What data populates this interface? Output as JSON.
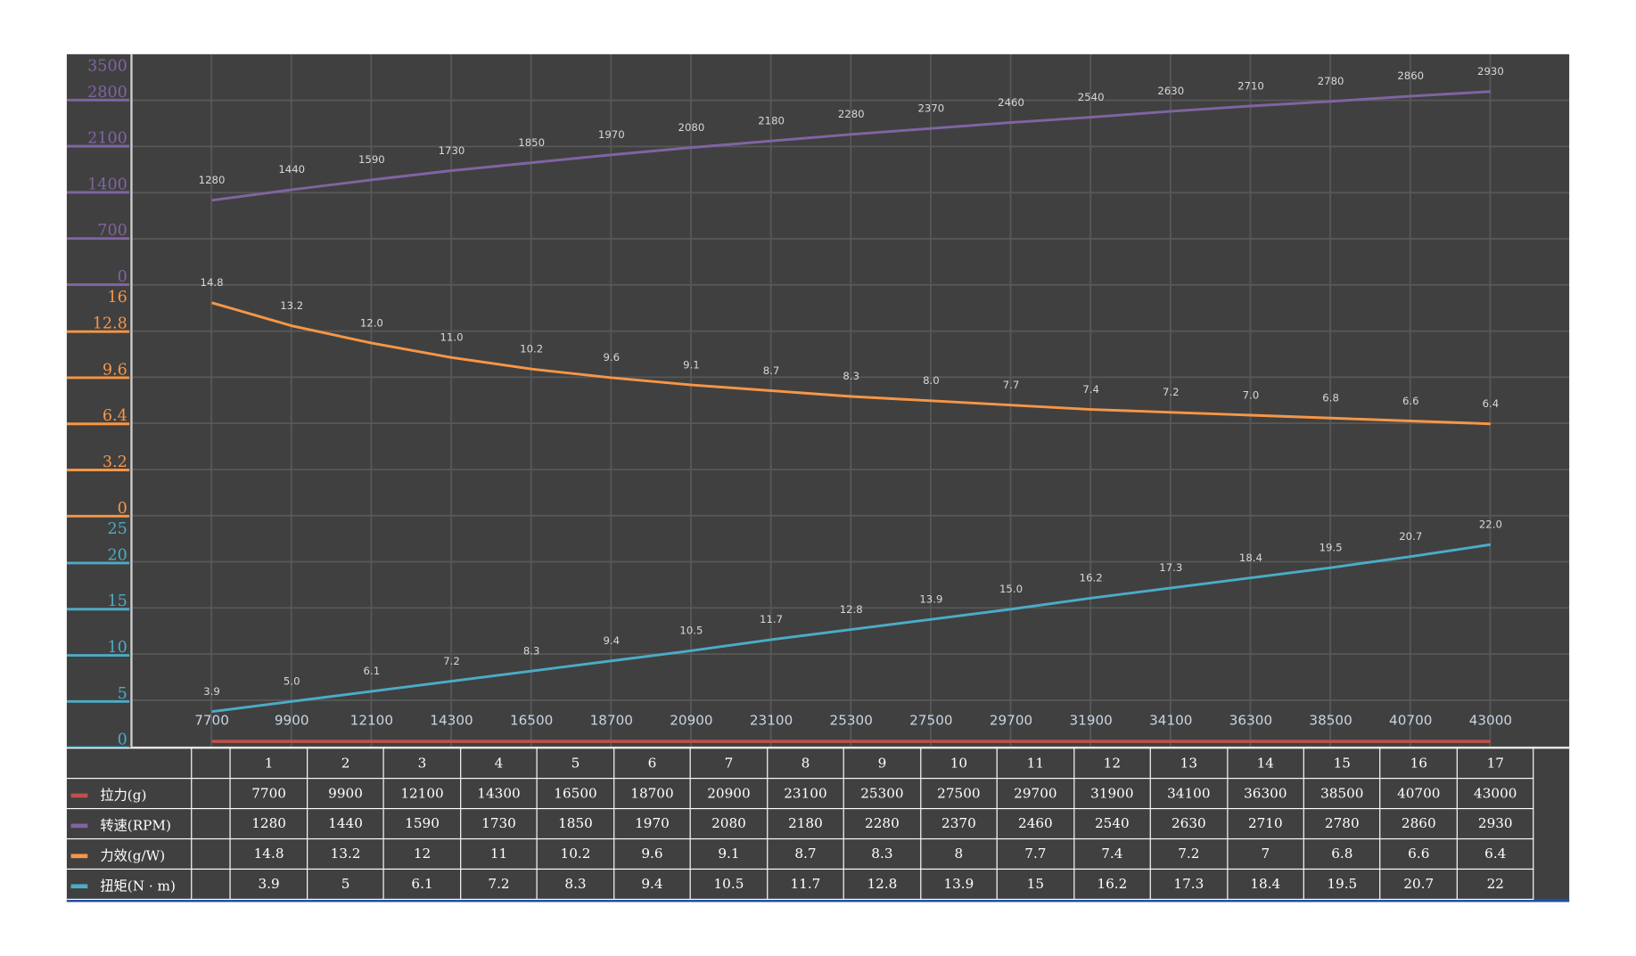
{
  "chart_data": {
    "type": "line",
    "x": [
      7700,
      9900,
      12100,
      14300,
      16500,
      18700,
      20900,
      23100,
      25300,
      27500,
      29700,
      31900,
      34100,
      36300,
      38500,
      40700,
      43000
    ],
    "series": [
      {
        "key": "pull",
        "name": "拉力(g)",
        "color": "#c0504d",
        "values": [
          7700,
          9900,
          12100,
          14300,
          16500,
          18700,
          20900,
          23100,
          25300,
          27500,
          29700,
          31900,
          34100,
          36300,
          38500,
          40700,
          43000
        ]
      },
      {
        "key": "rpm",
        "name": "转速(RPM)",
        "color": "#8064a2",
        "values": [
          1280,
          1440,
          1590,
          1730,
          1850,
          1970,
          2080,
          2180,
          2280,
          2370,
          2460,
          2540,
          2630,
          2710,
          2780,
          2860,
          2930
        ],
        "labels": [
          "1280",
          "1440",
          "1590",
          "1730",
          "1850",
          "1970",
          "2080",
          "2180",
          "2280",
          "2370",
          "2460",
          "2540",
          "2630",
          "2710",
          "2780",
          "2860",
          "2930"
        ],
        "axis": {
          "ticks": [
            "0",
            "700",
            "1400",
            "2100",
            "2800",
            "3500"
          ],
          "ylim": [
            0,
            3500
          ]
        }
      },
      {
        "key": "eff",
        "name": "力效(g/W)",
        "color": "#f79646",
        "values": [
          14.8,
          13.2,
          12,
          11,
          10.2,
          9.6,
          9.1,
          8.7,
          8.3,
          8,
          7.7,
          7.4,
          7.2,
          7,
          6.8,
          6.6,
          6.4
        ],
        "labels": [
          "14.8",
          "13.2",
          "12.0",
          "11.0",
          "10.2",
          "9.6",
          "9.1",
          "8.7",
          "8.3",
          "8.0",
          "7.7",
          "7.4",
          "7.2",
          "7.0",
          "6.8",
          "6.6",
          "6.4"
        ],
        "axis": {
          "ticks": [
            "0",
            "3.2",
            "6.4",
            "9.6",
            "12.8",
            "16"
          ],
          "ylim": [
            0,
            16
          ]
        }
      },
      {
        "key": "torque",
        "name": "扭矩(N·m)",
        "color": "#4bacc6",
        "values": [
          3.9,
          5,
          6.1,
          7.2,
          8.3,
          9.4,
          10.5,
          11.7,
          12.8,
          13.9,
          15,
          16.2,
          17.3,
          18.4,
          19.5,
          20.7,
          22
        ],
        "labels": [
          "3.9",
          "5.0",
          "6.1",
          "7.2",
          "8.3",
          "9.4",
          "10.5",
          "11.7",
          "12.8",
          "13.9",
          "15.0",
          "16.2",
          "17.3",
          "18.4",
          "19.5",
          "20.7",
          "22.0"
        ],
        "axis": {
          "ticks": [
            "0",
            "5",
            "10",
            "15",
            "20",
            "25"
          ],
          "ylim": [
            0,
            25
          ]
        }
      }
    ],
    "x_tick_labels": [
      "7700",
      "9900",
      "12100",
      "14300",
      "16500",
      "18700",
      "20900",
      "23100",
      "25300",
      "27500",
      "29700",
      "31900",
      "34100",
      "36300",
      "38500",
      "40700",
      "43000"
    ]
  },
  "table": {
    "columns": [
      "1",
      "2",
      "3",
      "4",
      "5",
      "6",
      "7",
      "8",
      "9",
      "10",
      "11",
      "12",
      "13",
      "14",
      "15",
      "16",
      "17"
    ],
    "rows": [
      {
        "label": "拉力(g)",
        "color": "#c0504d",
        "cells": [
          "7700",
          "9900",
          "12100",
          "14300",
          "16500",
          "18700",
          "20900",
          "23100",
          "25300",
          "27500",
          "29700",
          "31900",
          "34100",
          "36300",
          "38500",
          "40700",
          "43000"
        ]
      },
      {
        "label": "转速(RPM)",
        "color": "#8064a2",
        "cells": [
          "1280",
          "1440",
          "1590",
          "1730",
          "1850",
          "1970",
          "2080",
          "2180",
          "2280",
          "2370",
          "2460",
          "2540",
          "2630",
          "2710",
          "2780",
          "2860",
          "2930"
        ]
      },
      {
        "label": "力效(g/W)",
        "color": "#f79646",
        "cells": [
          "14.8",
          "13.2",
          "12",
          "11",
          "10.2",
          "9.6",
          "9.1",
          "8.7",
          "8.3",
          "8",
          "7.7",
          "7.4",
          "7.2",
          "7",
          "6.8",
          "6.6",
          "6.4"
        ]
      },
      {
        "label": "扭矩(N · m)",
        "color": "#4bacc6",
        "cells": [
          "3.9",
          "5",
          "6.1",
          "7.2",
          "8.3",
          "9.4",
          "10.5",
          "11.7",
          "12.8",
          "13.9",
          "15",
          "16.2",
          "17.3",
          "18.4",
          "19.5",
          "20.7",
          "22"
        ]
      }
    ]
  }
}
